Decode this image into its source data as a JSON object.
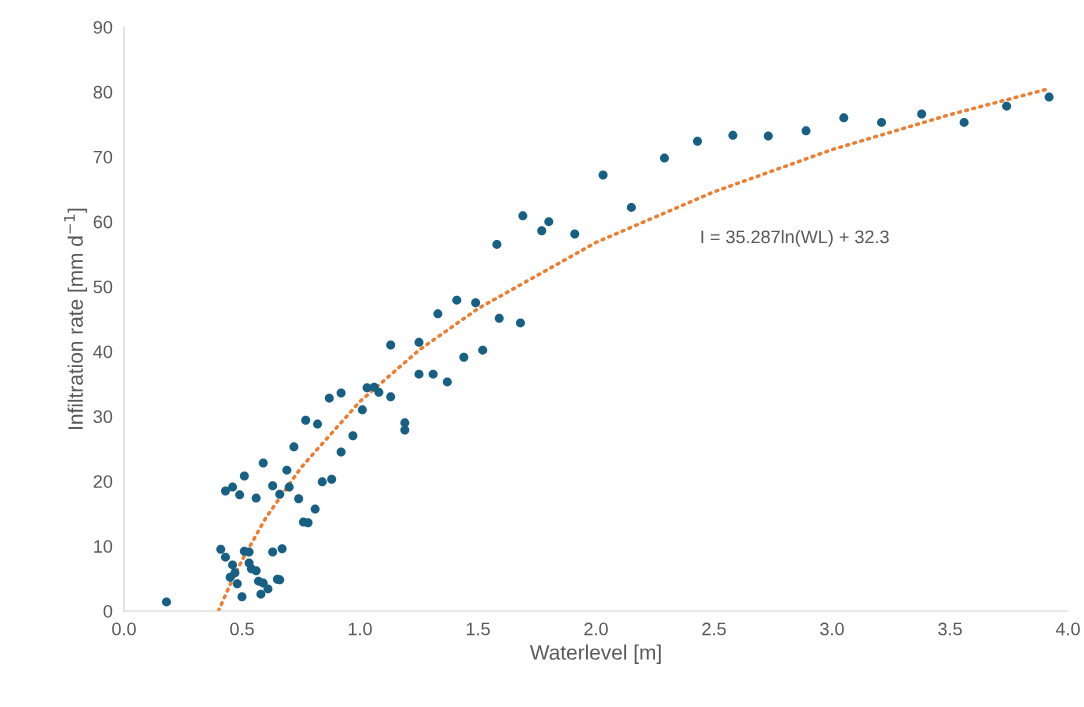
{
  "chart_data": {
    "type": "scatter",
    "xlabel": "Waterlevel [m]",
    "ylabel": "Infiltration rate [mm d$^{−1}$]",
    "xlim": [
      0.0,
      4.0
    ],
    "xticks": [
      {
        "value": 0,
        "label": "0.0"
      },
      {
        "value": 0.5,
        "label": "0.5"
      },
      {
        "value": 1,
        "label": "1.0"
      },
      {
        "value": 1.5,
        "label": "1.5"
      },
      {
        "value": 2,
        "label": "2.0"
      },
      {
        "value": 2.5,
        "label": "2.5"
      },
      {
        "value": 3,
        "label": "3.0"
      },
      {
        "value": 3.5,
        "label": "3.5"
      },
      {
        "value": 4,
        "label": "4.0"
      }
    ],
    "ylim": [
      0,
      90
    ],
    "yticks": [
      0,
      10,
      20,
      30,
      40,
      50,
      60,
      70,
      80,
      90
    ],
    "grid": false,
    "legend": false,
    "annotations": [
      "I = 35.287ln(WL) + 32.3"
    ],
    "series": [
      {
        "marker": "circle",
        "color": "#176084",
        "x": [
          0.18,
          0.41,
          0.43,
          0.43,
          0.45,
          0.46,
          0.46,
          0.47,
          0.48,
          0.49,
          0.5,
          0.51,
          0.51,
          0.53,
          0.53,
          0.54,
          0.56,
          0.56,
          0.57,
          0.58,
          0.59,
          0.59,
          0.61,
          0.63,
          0.63,
          0.65,
          0.66,
          0.66,
          0.67,
          0.69,
          0.7,
          0.72,
          0.74,
          0.76,
          0.77,
          0.78,
          0.81,
          0.82,
          0.84,
          0.87,
          0.88,
          0.92,
          0.92,
          0.97,
          1.01,
          1.03,
          1.06,
          1.08,
          1.13,
          1.13,
          1.19,
          1.19,
          1.25,
          1.25,
          1.31,
          1.33,
          1.37,
          1.41,
          1.44,
          1.49,
          1.52,
          1.58,
          1.59,
          1.68,
          1.69,
          1.77,
          1.8,
          1.91,
          2.03,
          2.15,
          2.29,
          2.43,
          2.58,
          2.73,
          2.89,
          3.05,
          3.21,
          3.38,
          3.56,
          3.74,
          3.92
        ],
        "values": [
          1.4,
          9.5,
          8.3,
          18.5,
          5.2,
          7.1,
          19.1,
          5.9,
          4.2,
          17.9,
          2.2,
          20.8,
          9.2,
          7.4,
          9.1,
          6.5,
          6.2,
          17.4,
          4.6,
          2.6,
          4.3,
          22.8,
          3.4,
          19.3,
          9.1,
          4.9,
          4.8,
          18.0,
          9.6,
          21.7,
          19.1,
          25.3,
          17.3,
          13.7,
          29.4,
          13.6,
          15.7,
          28.8,
          19.9,
          32.8,
          20.3,
          33.6,
          24.5,
          27.0,
          31.0,
          34.4,
          34.5,
          33.7,
          33.0,
          41.0,
          29.0,
          27.9,
          36.5,
          41.4,
          36.5,
          45.8,
          35.3,
          47.9,
          39.1,
          47.5,
          40.2,
          56.5,
          45.1,
          44.4,
          60.9,
          58.6,
          60.0,
          58.1,
          67.2,
          62.2,
          69.8,
          72.4,
          73.3,
          73.2,
          74.0,
          76.0,
          75.3,
          76.6,
          75.3,
          77.8,
          79.2
        ]
      },
      {
        "type": "line",
        "line_style": "dotted",
        "color": "#ed7d31",
        "x": [
          0.4,
          0.45,
          0.5,
          0.6,
          0.75,
          1.0,
          1.25,
          1.5,
          2.0,
          2.5,
          3.0,
          3.5,
          3.92
        ],
        "values": [
          0.0,
          4.1,
          7.8,
          14.3,
          22.1,
          32.3,
          40.2,
          46.6,
          56.8,
          64.6,
          71.1,
          76.5,
          80.5
        ]
      }
    ]
  }
}
